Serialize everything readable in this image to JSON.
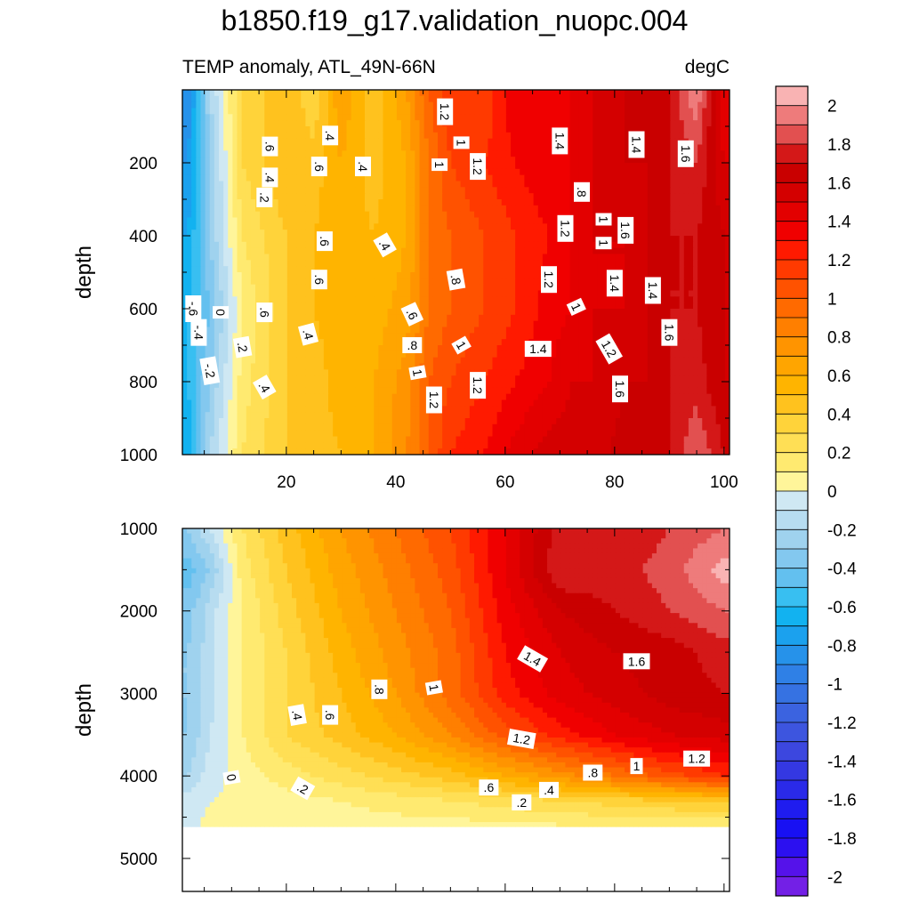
{
  "title": "b1850.f19_g17.validation_nuopc.004",
  "subtitle_left": "TEMP anomaly, ATL_49N-66N",
  "subtitle_right": "degC",
  "chart_data": [
    {
      "type": "contour",
      "panel": "upper",
      "xlabel": "",
      "ylabel": "depth",
      "xlim": [
        1,
        101
      ],
      "ylim": [
        1000,
        0
      ],
      "x_ticks": [
        "20",
        "40",
        "60",
        "80",
        "100"
      ],
      "y_ticks": [
        "200",
        "400",
        "600",
        "800",
        "1000"
      ],
      "grid_x": [
        2,
        6,
        12,
        20,
        25,
        30,
        36,
        42,
        46,
        50,
        56,
        62,
        68,
        72,
        76,
        82,
        86,
        90,
        95,
        100
      ],
      "grid_y": [
        0,
        200,
        400,
        600,
        800,
        1000
      ],
      "values": [
        [
          -0.9,
          -0.2,
          0.3,
          0.5,
          0.3,
          0.7,
          0.4,
          0.7,
          1.0,
          1.2,
          1.1,
          1.4,
          1.4,
          1.4,
          1.5,
          1.6,
          1.7,
          1.7,
          2.0,
          1.4
        ],
        [
          -0.8,
          -0.3,
          0.3,
          0.5,
          0.45,
          0.6,
          0.45,
          0.6,
          0.9,
          1.1,
          1.2,
          1.3,
          1.4,
          1.4,
          1.5,
          1.6,
          1.6,
          1.7,
          1.8,
          1.5
        ],
        [
          -0.7,
          -0.3,
          0.2,
          0.4,
          0.5,
          0.55,
          0.5,
          0.6,
          0.9,
          1.0,
          1.1,
          1.2,
          1.3,
          1.4,
          1.5,
          1.5,
          1.6,
          1.7,
          1.7,
          1.6
        ],
        [
          -0.6,
          -0.4,
          0.1,
          0.4,
          0.5,
          0.55,
          0.55,
          0.65,
          0.9,
          1.0,
          1.1,
          1.2,
          1.35,
          1.4,
          1.5,
          1.5,
          1.6,
          1.7,
          1.7,
          1.6
        ],
        [
          -0.6,
          -0.3,
          0.15,
          0.4,
          0.45,
          0.55,
          0.6,
          0.75,
          1.0,
          1.1,
          1.2,
          1.3,
          1.4,
          1.5,
          1.5,
          1.6,
          1.6,
          1.7,
          1.75,
          1.6
        ],
        [
          -0.7,
          -0.2,
          0.2,
          0.4,
          0.45,
          0.5,
          0.6,
          0.8,
          1.0,
          1.2,
          1.3,
          1.45,
          1.55,
          1.55,
          1.55,
          1.65,
          1.7,
          1.7,
          1.9,
          1.7
        ]
      ],
      "contour_labels": [
        {
          "text": "1.2",
          "x": 49,
          "y": 60,
          "rotate": 90
        },
        {
          "text": "1",
          "x": 52,
          "y": 145,
          "rotate": 90
        },
        {
          "text": "1.4",
          "x": 70,
          "y": 140,
          "rotate": 90
        },
        {
          "text": "1.4",
          "x": 84,
          "y": 150,
          "rotate": 90
        },
        {
          "text": "1.6",
          "x": 93,
          "y": 175,
          "rotate": 90
        },
        {
          "text": ".6",
          "x": 17,
          "y": 155,
          "rotate": 90
        },
        {
          "text": ".4",
          "x": 28,
          "y": 125,
          "rotate": 90
        },
        {
          "text": "1",
          "x": 48,
          "y": 205,
          "rotate": 90
        },
        {
          "text": "1.2",
          "x": 55,
          "y": 210,
          "rotate": 90
        },
        {
          "text": ".4",
          "x": 17,
          "y": 240,
          "rotate": 90
        },
        {
          "text": ".6",
          "x": 26,
          "y": 210,
          "rotate": 90
        },
        {
          "text": ".4",
          "x": 34,
          "y": 210,
          "rotate": 90
        },
        {
          "text": ".8",
          "x": 74,
          "y": 280,
          "rotate": 90
        },
        {
          "text": ".2",
          "x": 16,
          "y": 295,
          "rotate": 90
        },
        {
          "text": "1",
          "x": 78,
          "y": 355,
          "rotate": 90
        },
        {
          "text": "1.2",
          "x": 71,
          "y": 380,
          "rotate": 90
        },
        {
          "text": "1.6",
          "x": 82,
          "y": 385,
          "rotate": 90
        },
        {
          "text": ".6",
          "x": 27,
          "y": 415,
          "rotate": 90
        },
        {
          "text": ".4",
          "x": 38,
          "y": 425,
          "rotate": 60
        },
        {
          "text": "1",
          "x": 78,
          "y": 420,
          "rotate": 90
        },
        {
          "text": ".6",
          "x": 26,
          "y": 520,
          "rotate": 90
        },
        {
          "text": ".8",
          "x": 51,
          "y": 520,
          "rotate": 80
        },
        {
          "text": "1.2",
          "x": 68,
          "y": 520,
          "rotate": 90
        },
        {
          "text": "1.4",
          "x": 80,
          "y": 530,
          "rotate": 90
        },
        {
          "text": "1.4",
          "x": 87,
          "y": 550,
          "rotate": 90
        },
        {
          "text": "-.6",
          "x": 3,
          "y": 600,
          "rotate": 90
        },
        {
          "text": "0",
          "x": 8,
          "y": 610,
          "rotate": 90
        },
        {
          "text": ".6",
          "x": 16,
          "y": 610,
          "rotate": 90
        },
        {
          "text": "1",
          "x": 73,
          "y": 595,
          "rotate": 65
        },
        {
          "text": ".6",
          "x": 43,
          "y": 615,
          "rotate": 65
        },
        {
          "text": "-.4",
          "x": 4,
          "y": 665,
          "rotate": 90
        },
        {
          "text": ".4",
          "x": 24,
          "y": 670,
          "rotate": 75
        },
        {
          "text": "1.6",
          "x": 90,
          "y": 665,
          "rotate": 90
        },
        {
          "text": ".2",
          "x": 12,
          "y": 705,
          "rotate": 80
        },
        {
          "text": ".8",
          "x": 43,
          "y": 700,
          "rotate": 0
        },
        {
          "text": "1",
          "x": 52,
          "y": 700,
          "rotate": 60
        },
        {
          "text": "1.4",
          "x": 66,
          "y": 710,
          "rotate": 0
        },
        {
          "text": "1.2",
          "x": 79,
          "y": 710,
          "rotate": 60
        },
        {
          "text": "-.2",
          "x": 6,
          "y": 770,
          "rotate": 80
        },
        {
          "text": "1",
          "x": 44,
          "y": 775,
          "rotate": 80
        },
        {
          "text": ".4",
          "x": 16,
          "y": 815,
          "rotate": 60
        },
        {
          "text": "1.2",
          "x": 55,
          "y": 810,
          "rotate": 90
        },
        {
          "text": "1.6",
          "x": 81,
          "y": 820,
          "rotate": 90
        },
        {
          "text": "1.2",
          "x": 47,
          "y": 850,
          "rotate": 90
        }
      ]
    },
    {
      "type": "contour",
      "panel": "lower",
      "xlabel": "",
      "ylabel": "depth",
      "xlim": [
        1,
        101
      ],
      "ylim": [
        5400,
        1000
      ],
      "bathymetry_floor_depth": 4620,
      "y_ticks": [
        "1000",
        "2000",
        "3000",
        "4000",
        "5000"
      ],
      "grid_x": [
        2,
        6,
        12,
        20,
        30,
        40,
        50,
        60,
        70,
        80,
        90,
        100
      ],
      "grid_y": [
        1000,
        1500,
        2000,
        2500,
        3000,
        3500,
        4000,
        4300,
        4620
      ],
      "values": [
        [
          -0.3,
          -0.1,
          0.2,
          0.45,
          0.7,
          0.9,
          1.1,
          1.4,
          1.75,
          1.7,
          1.8,
          1.9
        ],
        [
          -0.45,
          -0.3,
          0.15,
          0.4,
          0.65,
          0.85,
          1.05,
          1.4,
          1.8,
          1.75,
          1.85,
          2.05
        ],
        [
          -0.35,
          -0.15,
          0.1,
          0.35,
          0.6,
          0.8,
          1.0,
          1.35,
          1.6,
          1.7,
          1.8,
          1.9
        ],
        [
          -0.3,
          -0.15,
          0.1,
          0.3,
          0.55,
          0.75,
          0.95,
          1.3,
          1.5,
          1.6,
          1.65,
          1.75
        ],
        [
          -0.3,
          -0.15,
          0.1,
          0.3,
          0.5,
          0.7,
          0.95,
          1.25,
          1.45,
          1.55,
          1.65,
          1.7
        ],
        [
          -0.3,
          -0.1,
          0.1,
          0.3,
          0.45,
          0.6,
          0.8,
          1.05,
          1.25,
          1.4,
          1.5,
          1.55
        ],
        [
          -0.2,
          -0.05,
          0.05,
          0.15,
          0.25,
          0.35,
          0.45,
          0.6,
          0.75,
          0.9,
          1.05,
          1.2
        ],
        [
          -0.05,
          0.0,
          0.02,
          0.06,
          0.1,
          0.15,
          0.2,
          0.25,
          0.3,
          0.35,
          0.4,
          0.45
        ],
        [
          -0.02,
          0.02,
          0.04,
          0.05,
          0.05,
          0.05,
          0.05,
          0.06,
          0.08,
          0.1,
          0.1,
          0.1
        ]
      ],
      "contour_labels": [
        {
          "text": "1.4",
          "x": 65,
          "y": 2580,
          "rotate": 30
        },
        {
          "text": "1.6",
          "x": 84,
          "y": 2610,
          "rotate": 0
        },
        {
          "text": ".8",
          "x": 37,
          "y": 2950,
          "rotate": 90
        },
        {
          "text": "1",
          "x": 47,
          "y": 2930,
          "rotate": 80
        },
        {
          "text": ".4",
          "x": 22,
          "y": 3260,
          "rotate": 80
        },
        {
          "text": ".6",
          "x": 28,
          "y": 3260,
          "rotate": 90
        },
        {
          "text": "1.2",
          "x": 63,
          "y": 3550,
          "rotate": 10
        },
        {
          "text": ".8",
          "x": 76,
          "y": 3960,
          "rotate": 0
        },
        {
          "text": "1",
          "x": 84,
          "y": 3880,
          "rotate": 0
        },
        {
          "text": "1.2",
          "x": 95,
          "y": 3790,
          "rotate": 0
        },
        {
          "text": "0",
          "x": 10,
          "y": 4020,
          "rotate": 80
        },
        {
          "text": ".2",
          "x": 23,
          "y": 4150,
          "rotate": 30
        },
        {
          "text": ".6",
          "x": 57,
          "y": 4140,
          "rotate": 0
        },
        {
          "text": ".4",
          "x": 68,
          "y": 4170,
          "rotate": 0
        },
        {
          "text": ".2",
          "x": 63,
          "y": 4320,
          "rotate": 0
        }
      ]
    }
  ],
  "colorbar": {
    "label_values": [
      "2",
      "1.8",
      "1.6",
      "1.4",
      "1.2",
      "1",
      "0.8",
      "0.6",
      "0.4",
      "0.2",
      "0",
      "-0.2",
      "-0.4",
      "-0.6",
      "-0.8",
      "-1",
      "-1.2",
      "-1.4",
      "-1.6",
      "-1.8",
      "-2"
    ],
    "levels_top_to_bottom": [
      2.1,
      2.0,
      1.9,
      1.8,
      1.7,
      1.6,
      1.5,
      1.4,
      1.3,
      1.2,
      1.1,
      1.0,
      0.9,
      0.8,
      0.7,
      0.6,
      0.5,
      0.4,
      0.3,
      0.2,
      0.1,
      0.0,
      -0.1,
      -0.2,
      -0.3,
      -0.4,
      -0.5,
      -0.6,
      -0.7,
      -0.8,
      -0.9,
      -1.0,
      -1.1,
      -1.2,
      -1.3,
      -1.4,
      -1.5,
      -1.6,
      -1.7,
      -1.8,
      -1.9,
      -2.0,
      -2.1
    ],
    "colors_top_to_bottom": [
      "#f9b3b3",
      "#ee7b7b",
      "#e25050",
      "#d41818",
      "#c90000",
      "#d40000",
      "#e30000",
      "#f00000",
      "#ff1a00",
      "#ff3a00",
      "#ff5200",
      "#ff6a00",
      "#ff7f00",
      "#ff9400",
      "#ffa500",
      "#ffb400",
      "#ffc21e",
      "#ffd33a",
      "#ffdf55",
      "#ffea70",
      "#fff59a",
      "#cfe8f3",
      "#b7dcf0",
      "#9fd2ee",
      "#83c8ef",
      "#63c0ef",
      "#38bff1",
      "#12b2f0",
      "#1ba1ee",
      "#2692ea",
      "#2f80e6",
      "#3672e2",
      "#3b63e0",
      "#3d55df",
      "#3c47df",
      "#3438e2",
      "#2a2ae8",
      "#1f1cef",
      "#1810f3",
      "#2c10f0",
      "#5512ea",
      "#7320e6"
    ]
  }
}
